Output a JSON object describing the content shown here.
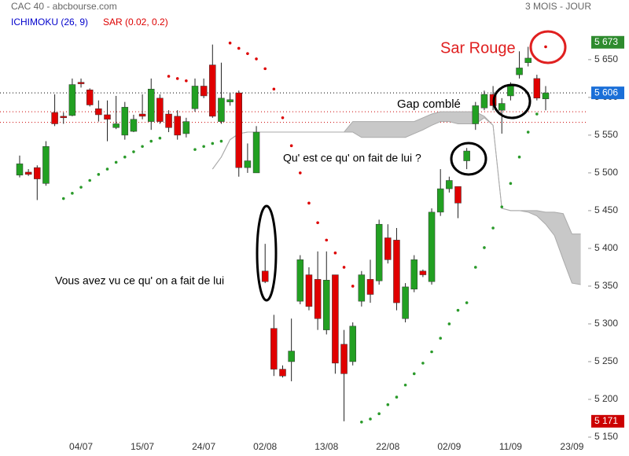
{
  "chart_data": {
    "type": "candlestick",
    "title": "CAC 40 - abcbourse.com",
    "subtitle": "3 MOIS - JOUR",
    "categories": [
      null,
      null,
      null,
      null,
      null,
      null,
      null,
      "04/07",
      null,
      null,
      null,
      null,
      null,
      null,
      "15/07",
      null,
      null,
      null,
      null,
      null,
      null,
      "24/07",
      null,
      null,
      null,
      null,
      null,
      null,
      "02/08",
      null,
      null,
      null,
      null,
      null,
      null,
      "13/08",
      null,
      null,
      null,
      null,
      null,
      null,
      "22/08",
      null,
      null,
      null,
      null,
      null,
      null,
      "02/09",
      null,
      null,
      null,
      null,
      null,
      null,
      "11/09",
      null,
      null,
      null,
      null,
      null,
      null,
      "23/09",
      null
    ],
    "open": [
      5497,
      5501,
      5507,
      5486,
      5580,
      5575,
      5576,
      5620,
      5610,
      5585,
      5577,
      5560,
      5550,
      5555,
      5578,
      5568,
      5599,
      5578,
      5575,
      5552,
      5585,
      5615,
      5643,
      5568,
      5594,
      5606,
      5507,
      5500,
      5370,
      5294,
      5240,
      5250,
      5330,
      5365,
      5359,
      5292,
      5365,
      5273,
      5250,
      5330,
      5359,
      5357,
      5414,
      5411,
      5307,
      5346,
      5370,
      5356,
      5448,
      5479,
      5482,
      5516,
      5565,
      5586,
      5604,
      5583,
      5602,
      5630,
      5646,
      5625,
      5598,
      null,
      null,
      null,
      null
    ],
    "high": [
      5523,
      5505,
      5510,
      5542,
      5604,
      5580,
      5625,
      5625,
      5612,
      5596,
      5596,
      5602,
      5594,
      5577,
      5604,
      5625,
      5604,
      5583,
      5583,
      5573,
      5625,
      5625,
      5670,
      5646,
      5606,
      5609,
      5539,
      5562,
      5406,
      5312,
      5245,
      5307,
      5391,
      5375,
      5396,
      5396,
      5365,
      5292,
      5302,
      5370,
      5385,
      5438,
      5432,
      5427,
      5354,
      5391,
      5372,
      5453,
      5505,
      5495,
      5482,
      5533,
      5594,
      5609,
      5615,
      5599,
      5620,
      5661,
      5667,
      5630,
      5615,
      null,
      null,
      null,
      null
    ],
    "low": [
      5494,
      5496,
      5464,
      5483,
      5562,
      5565,
      5575,
      5613,
      5588,
      5568,
      5542,
      5558,
      5544,
      5554,
      5571,
      5557,
      5565,
      5554,
      5544,
      5547,
      5581,
      5599,
      5573,
      5565,
      5589,
      5495,
      5500,
      5500,
      5354,
      5231,
      5229,
      5224,
      5326,
      5318,
      5292,
      5286,
      5234,
      5171,
      5245,
      5323,
      5328,
      5352,
      5380,
      5318,
      5302,
      5342,
      5362,
      5352,
      5443,
      5474,
      5440,
      5505,
      5557,
      5583,
      5583,
      5552,
      5596,
      5625,
      5641,
      5596,
      5583,
      null,
      null,
      null,
      null
    ],
    "close": [
      5512,
      5498,
      5492,
      5535,
      5565,
      5573,
      5617,
      5618,
      5590,
      5577,
      5571,
      5565,
      5587,
      5571,
      5575,
      5611,
      5568,
      5560,
      5550,
      5568,
      5615,
      5602,
      5575,
      5599,
      5597,
      5507,
      5516,
      5554,
      5356,
      5240,
      5231,
      5264,
      5385,
      5323,
      5307,
      5358,
      5248,
      5234,
      5297,
      5365,
      5339,
      5432,
      5385,
      5328,
      5349,
      5385,
      5365,
      5448,
      5479,
      5490,
      5460,
      5529,
      5589,
      5604,
      5589,
      5592,
      5617,
      5639,
      5652,
      5599,
      5606,
      null,
      null,
      null,
      null
    ],
    "up_color": "#22a022",
    "down_color": "#e00000",
    "ichimoku": {
      "name": "ICHIMOKU (26, 9)",
      "color": "#0000cc",
      "cloud_color": "#c8c8c8",
      "line_color": "#aaaaaa",
      "span_a": [
        null,
        null,
        null,
        null,
        null,
        null,
        null,
        null,
        null,
        null,
        null,
        null,
        null,
        null,
        null,
        null,
        null,
        null,
        null,
        null,
        null,
        null,
        5505,
        5521,
        5544,
        5552,
        5554,
        5554,
        5554,
        5554,
        5554,
        5554,
        5554,
        5554,
        5554,
        5554,
        5554,
        5554,
        5568,
        5568,
        5568,
        5568,
        5568,
        5568,
        5568,
        5568,
        5573,
        5578,
        5581,
        5581,
        5581,
        5581,
        5581,
        5575,
        5563,
        5453,
        5450,
        5450,
        5450,
        5450,
        5448,
        5448,
        5446,
        5419,
        5419
      ],
      "span_b": [
        null,
        null,
        null,
        null,
        null,
        null,
        null,
        null,
        null,
        null,
        null,
        null,
        null,
        null,
        null,
        null,
        null,
        null,
        null,
        null,
        null,
        null,
        5505,
        5521,
        5544,
        5552,
        5554,
        5554,
        5554,
        5554,
        5554,
        5554,
        5554,
        5554,
        5554,
        5554,
        5554,
        5554,
        5554,
        5547,
        5547,
        5547,
        5547,
        5547,
        5547,
        5552,
        5557,
        5563,
        5568,
        5568,
        5565,
        5565,
        5565,
        5573,
        5563,
        5453,
        5450,
        5450,
        5448,
        5443,
        5432,
        5417,
        5385,
        5354,
        5352
      ]
    },
    "sar": {
      "name": "SAR (0.02, 0.2)",
      "color": "#dd0000",
      "up_color": "#2a9a2a",
      "values": [
        null,
        null,
        null,
        null,
        null,
        5466,
        5473,
        5481,
        5490,
        5498,
        5505,
        5514,
        5521,
        5528,
        5535,
        5542,
        5546,
        5628,
        5625,
        5622,
        5531,
        5535,
        5539,
        5542,
        5672,
        5665,
        5658,
        5651,
        5638,
        5611,
        5573,
        5536,
        5500,
        5460,
        5434,
        5411,
        5394,
        5375,
        5350,
        5170,
        5174,
        5181,
        5193,
        5203,
        5219,
        5234,
        5248,
        5263,
        5281,
        5300,
        5318,
        5328,
        5375,
        5401,
        5427,
        5455,
        5486,
        5521,
        5554,
        5578,
        5667,
        null,
        null,
        null,
        null
      ]
    },
    "hlines": [
      {
        "value": 5606,
        "color": "#000000"
      },
      {
        "value": 5581,
        "color": "#cc0000"
      },
      {
        "value": 5567,
        "color": "#cc0000"
      }
    ],
    "price_labels": [
      {
        "value": 5673,
        "label": "5 673",
        "color": "#2e8b2e"
      },
      {
        "value": 5606,
        "label": "5 606",
        "color": "#1a6fd8"
      },
      {
        "value": 5171,
        "label": "5 171",
        "color": "#cc0000"
      }
    ],
    "ylim": [
      5150,
      5729
    ],
    "yticks": [
      {
        "value": 5150,
        "label": "5 150"
      },
      {
        "value": 5200,
        "label": "5 200"
      },
      {
        "value": 5250,
        "label": "5 250"
      },
      {
        "value": 5300,
        "label": "5 300"
      },
      {
        "value": 5350,
        "label": "5 350"
      },
      {
        "value": 5400,
        "label": "5 400"
      },
      {
        "value": 5450,
        "label": "5 450"
      },
      {
        "value": 5500,
        "label": "5 500"
      },
      {
        "value": 5550,
        "label": "5 550"
      },
      {
        "value": 5600,
        "label": "5 600"
      },
      {
        "value": 5650,
        "label": "5 650"
      }
    ],
    "annotations": [
      {
        "text": "Sar Rouge",
        "color": "#e02020"
      },
      {
        "text": "Gap comblé",
        "color": "#000000"
      },
      {
        "text": "Qu' est ce qu' on fait de lui ?",
        "color": "#000000"
      },
      {
        "text": "Vous avez vu ce qu' on a fait de lui",
        "color": "#000000"
      }
    ]
  }
}
